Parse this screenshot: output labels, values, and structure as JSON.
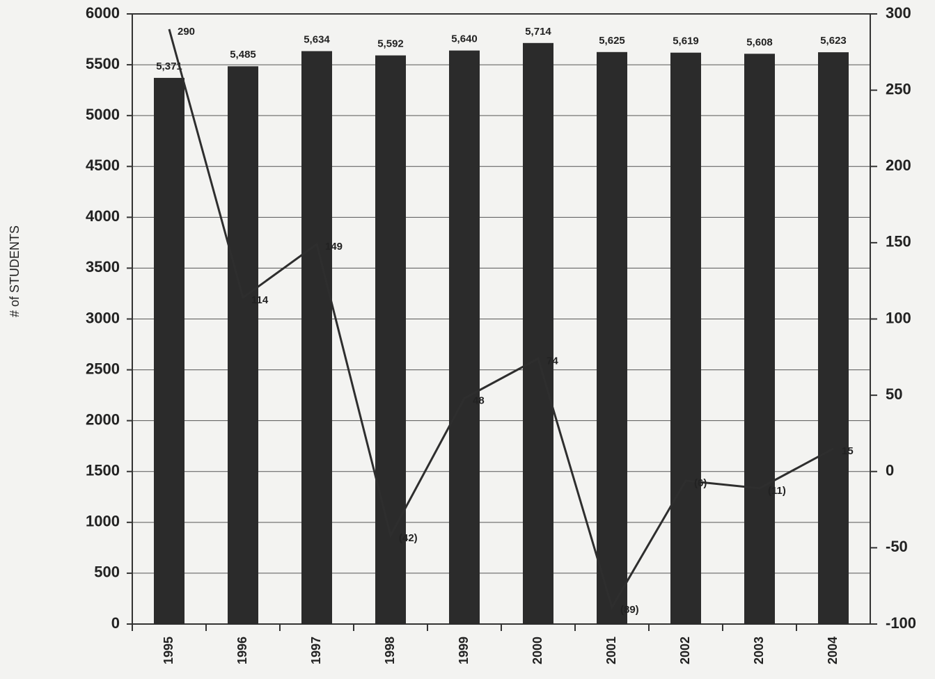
{
  "chart_data": {
    "type": "bar_line",
    "ylabel": "# of STUDENTS",
    "categories": [
      "1995",
      "1996",
      "1997",
      "1998",
      "1999",
      "2000",
      "2001",
      "2002",
      "2003",
      "2004"
    ],
    "series": [
      {
        "type": "bar",
        "color": "#2b2b2b",
        "values": [
          5371,
          5485,
          5634,
          5592,
          5640,
          5714,
          5625,
          5619,
          5608,
          5623
        ],
        "value_labels": [
          "5,371",
          "5,485",
          "5,634",
          "5,592",
          "5,640",
          "5,714",
          "5,625",
          "5,619",
          "5,608",
          "5,623"
        ]
      },
      {
        "type": "line",
        "axis": "y2",
        "color": "#2e2e2e",
        "values": [
          290,
          114,
          149,
          -42,
          48,
          74,
          -89,
          -6,
          -11,
          15
        ],
        "value_labels": [
          "290",
          "114",
          "149",
          "(42)",
          "48",
          "74",
          "(89)",
          "(6)",
          "(11)",
          "15"
        ]
      }
    ],
    "ylim": [
      0,
      6000
    ],
    "yticks": [
      0,
      500,
      1000,
      1500,
      2000,
      2500,
      3000,
      3500,
      4000,
      4500,
      5000,
      5500,
      6000
    ],
    "y2lim": [
      -100,
      300
    ],
    "y2ticks": [
      -100,
      -50,
      0,
      50,
      100,
      150,
      200,
      250,
      300
    ],
    "grid": true
  }
}
